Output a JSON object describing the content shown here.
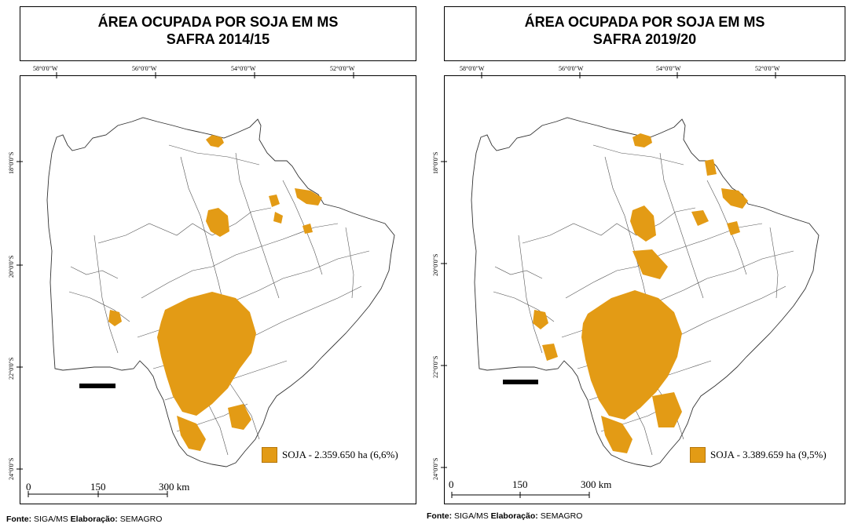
{
  "maps": [
    {
      "title_line1": "ÁREA OCUPADA POR SOJA EM MS",
      "title_line2": "SAFRA 2014/15",
      "lon_labels": [
        "58°0'0\"W",
        "56°0'0\"W",
        "54°0'0\"W",
        "52°0'0\"W"
      ],
      "lat_labels": [
        "18°0'0\"S",
        "20°0'0\"S",
        "22°0'0\"S",
        "24°0'0\"S"
      ],
      "legend_label": "SOJA - 2.359.650 ha (6,6%)",
      "scale_labels": [
        "0",
        "150",
        "300 km"
      ],
      "source_label_1": "Fonte:",
      "source_value_1": " SIGA/MS ",
      "source_label_2": "Elaboração:",
      "source_value_2": " SEMAGRO"
    },
    {
      "title_line1": "ÁREA OCUPADA POR SOJA EM MS",
      "title_line2": "SAFRA 2019/20",
      "lon_labels": [
        "58°0'0\"W",
        "56°0'0\"W",
        "54°0'0\"W",
        "52°0'0\"W"
      ],
      "lat_labels": [
        "18°0'0\"S",
        "20°0'0\"S",
        "22°0'0\"S",
        "24°0'0\"S"
      ],
      "legend_label": "SOJA - 3.389.659 ha (9,5%)",
      "scale_labels": [
        "0",
        "150",
        "300 km"
      ],
      "source_label_1": "Fonte:",
      "source_value_1": " SIGA/MS ",
      "source_label_2": "Elaboração:",
      "source_value_2": " SEMAGRO"
    }
  ],
  "colors": {
    "soy": "#e39b15",
    "border": "#333333"
  }
}
